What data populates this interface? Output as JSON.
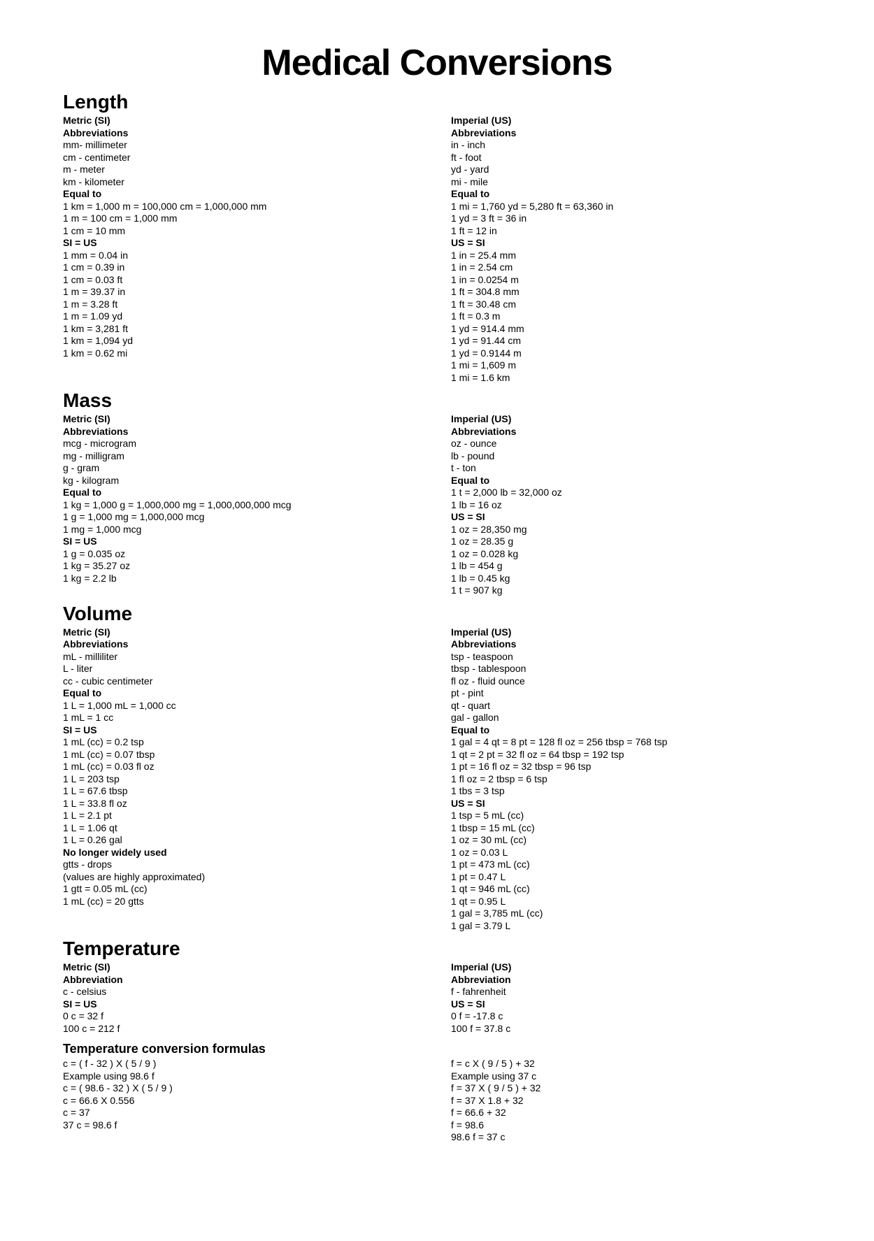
{
  "title": "Medical Conversions",
  "length": {
    "heading": "Length",
    "left": {
      "system": "Metric (SI)",
      "abbr_label": "Abbreviations",
      "abbr": [
        "mm- millimeter",
        "cm - centimeter",
        "m - meter",
        "km - kilometer"
      ],
      "equal_label": "Equal to",
      "equal": [
        "1 km = 1,000 m = 100,000 cm = 1,000,000 mm",
        "1 m = 100 cm = 1,000 mm",
        "1 cm = 10 mm"
      ],
      "conv_label": "SI = US",
      "conv": [
        "1 mm = 0.04 in",
        "1 cm = 0.39 in",
        "1 cm = 0.03 ft",
        "1 m = 39.37 in",
        "1 m = 3.28 ft",
        "1 m = 1.09 yd",
        "1 km = 3,281 ft",
        "1 km = 1,094 yd",
        "1 km = 0.62 mi"
      ]
    },
    "right": {
      "system": "Imperial (US)",
      "abbr_label": "Abbreviations",
      "abbr": [
        "in - inch",
        "ft - foot",
        "yd - yard",
        "mi - mile"
      ],
      "equal_label": "Equal to",
      "equal": [
        "1 mi = 1,760 yd = 5,280 ft = 63,360 in",
        "1 yd = 3 ft = 36 in",
        "1 ft = 12 in"
      ],
      "conv_label": "US = SI",
      "conv": [
        "1 in = 25.4 mm",
        "1 in = 2.54 cm",
        "1 in = 0.0254 m",
        "1 ft = 304.8 mm",
        "1 ft = 30.48 cm",
        "1 ft = 0.3 m",
        "1 yd = 914.4 mm",
        "1 yd = 91.44 cm",
        "1 yd = 0.9144 m",
        "1 mi = 1,609 m",
        "1 mi = 1.6 km"
      ]
    }
  },
  "mass": {
    "heading": "Mass",
    "left": {
      "system": "Metric (SI)",
      "abbr_label": "Abbreviations",
      "abbr": [
        "mcg - microgram",
        "mg - milligram",
        "g - gram",
        "kg - kilogram"
      ],
      "equal_label": "Equal to",
      "equal": [
        "1 kg = 1,000 g = 1,000,000 mg = 1,000,000,000 mcg",
        "1 g = 1,000 mg = 1,000,000 mcg",
        "1 mg = 1,000 mcg"
      ],
      "conv_label": "SI = US",
      "conv": [
        "1 g = 0.035 oz",
        "1 kg = 35.27 oz",
        "1 kg = 2.2 lb"
      ]
    },
    "right": {
      "system": "Imperial (US)",
      "abbr_label": "Abbreviations",
      "abbr": [
        "oz - ounce",
        "lb - pound",
        "t - ton"
      ],
      "equal_label": "Equal to",
      "equal": [
        "1 t = 2,000 lb = 32,000 oz",
        "1 lb = 16 oz"
      ],
      "conv_label": "US = SI",
      "conv": [
        "1 oz = 28,350 mg",
        "1 oz = 28.35 g",
        "1 oz = 0.028 kg",
        "1 lb = 454 g",
        "1 lb = 0.45 kg",
        "1 t = 907 kg"
      ]
    }
  },
  "volume": {
    "heading": "Volume",
    "left": {
      "system": "Metric (SI)",
      "abbr_label": "Abbreviations",
      "abbr": [
        "mL - milliliter",
        "L - liter",
        "cc - cubic centimeter"
      ],
      "equal_label": "Equal to",
      "equal": [
        "1 L = 1,000 mL = 1,000 cc",
        "1 mL = 1 cc"
      ],
      "conv_label": "SI = US",
      "conv": [
        "1 mL (cc) = 0.2 tsp",
        "1 mL (cc) = 0.07 tbsp",
        "1 mL (cc) = 0.03 fl oz",
        "1 L = 203 tsp",
        "1 L = 67.6 tbsp",
        "1 L = 33.8 fl oz",
        "1 L = 2.1 pt",
        "1 L = 1.06 qt",
        "1 L = 0.26 gal"
      ],
      "extra_label": "No longer widely used",
      "extra": [
        "gtts - drops",
        "(values are highly approximated)",
        "1 gtt = 0.05 mL (cc)",
        "1 mL (cc) = 20 gtts"
      ]
    },
    "right": {
      "system": "Imperial (US)",
      "abbr_label": "Abbreviations",
      "abbr": [
        "tsp - teaspoon",
        "tbsp - tablespoon",
        "fl oz - fluid ounce",
        "pt - pint",
        "qt - quart",
        "gal - gallon"
      ],
      "equal_label": "Equal to",
      "equal": [
        "1 gal = 4 qt = 8 pt = 128 fl oz = 256 tbsp = 768 tsp",
        "1 qt = 2 pt = 32 fl oz = 64 tbsp = 192 tsp",
        "1 pt = 16 fl oz = 32 tbsp = 96 tsp",
        "1 fl oz = 2 tbsp = 6 tsp",
        "1 tbs = 3 tsp"
      ],
      "conv_label": "US = SI",
      "conv": [
        "1 tsp = 5 mL (cc)",
        "1 tbsp = 15 mL (cc)",
        "1 oz = 30 mL (cc)",
        "1 oz = 0.03 L",
        "1 pt = 473 mL (cc)",
        "1 pt = 0.47 L",
        "1 qt = 946 mL (cc)",
        "1 qt = 0.95 L",
        "1 gal = 3,785 mL (cc)",
        "1 gal = 3.79 L"
      ]
    }
  },
  "temperature": {
    "heading": "Temperature",
    "left": {
      "system": "Metric (SI)",
      "abbr_label": "Abbreviation",
      "abbr": [
        "c - celsius"
      ],
      "conv_label": "SI = US",
      "conv": [
        "0 c = 32 f",
        "100 c = 212 f"
      ]
    },
    "right": {
      "system": "Imperial (US)",
      "abbr_label": "Abbreviation",
      "abbr": [
        "f - fahrenheit"
      ],
      "conv_label": "US = SI",
      "conv": [
        "0 f = -17.8 c",
        "100 f = 37.8 c"
      ]
    }
  },
  "formulas": {
    "heading": "Temperature conversion formulas",
    "left": [
      "c = ( f - 32 ) X ( 5 / 9 )",
      "Example using 98.6 f",
      "c = ( 98.6 - 32 ) X ( 5 / 9 )",
      "c = 66.6 X 0.556",
      "c = 37",
      "37 c = 98.6 f"
    ],
    "right": [
      "f = c X ( 9 / 5 ) + 32",
      "Example using 37 c",
      "f = 37 X ( 9 / 5 ) + 32",
      "f = 37 X 1.8 + 32",
      "f = 66.6 + 32",
      "f = 98.6",
      "98.6 f = 37 c"
    ]
  }
}
